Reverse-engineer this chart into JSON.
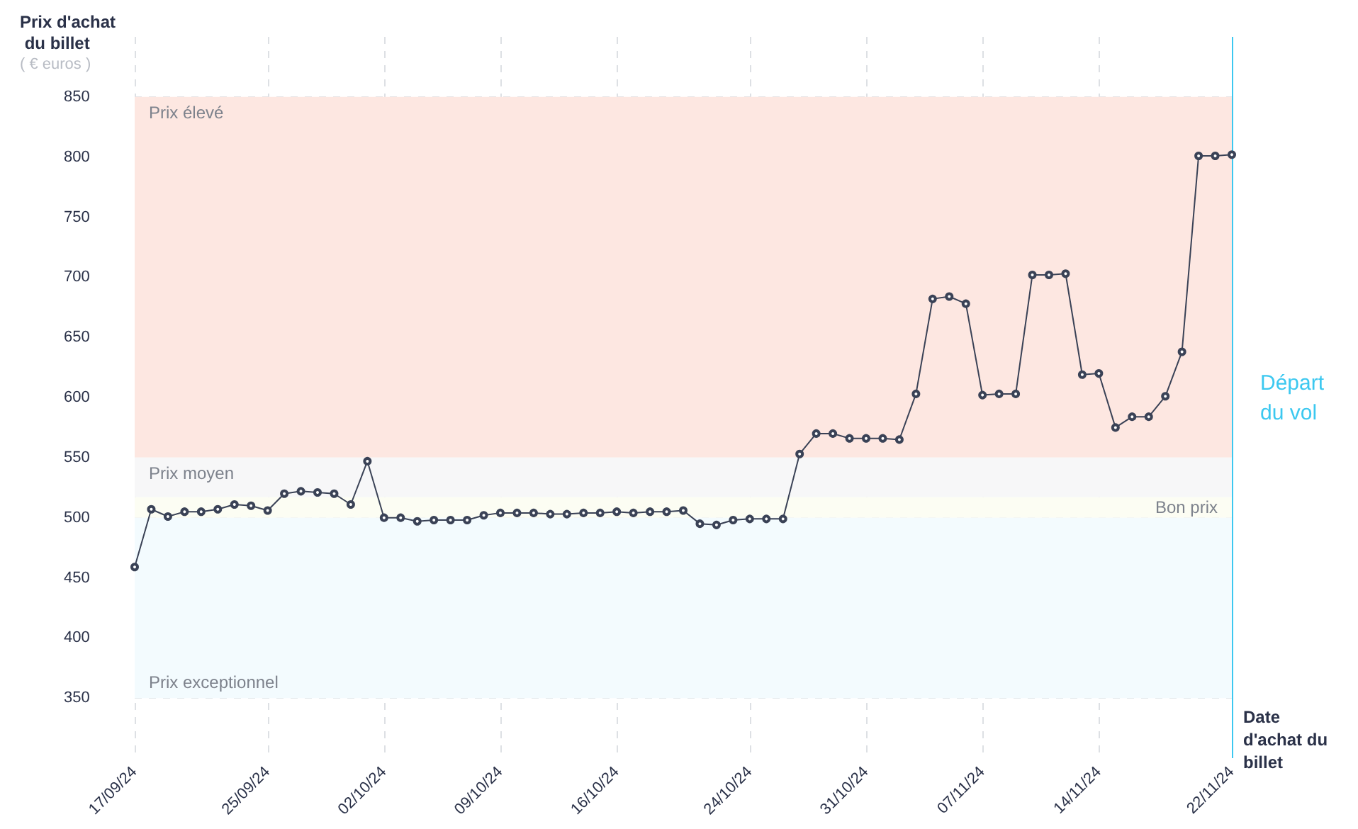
{
  "chart_data": {
    "type": "line",
    "ylabel": "Prix d'achat du billet",
    "xlabel": "Date d'achat du billet",
    "annotations": [
      "( € euros )"
    ],
    "x": [
      "--09-17",
      "--09-18",
      "--09-19",
      "--09-20",
      "--09-21",
      "--09-22",
      "--09-23",
      "--09-24",
      "--09-25",
      "--09-26",
      "--09-27",
      "--09-28",
      "--09-29",
      "--09-30",
      "--10-01",
      "--10-02",
      "--10-03",
      "--10-04",
      "--10-05",
      "--10-06",
      "--10-07",
      "--10-08",
      "--10-09",
      "--10-10",
      "--10-11",
      "--10-12",
      "--10-13",
      "--10-14",
      "--10-15",
      "--10-16",
      "--10-17",
      "--10-18",
      "--10-19",
      "--10-20",
      "--10-21",
      "--10-22",
      "--10-23",
      "--10-24",
      "--10-25",
      "--10-26",
      "--10-27",
      "--10-28",
      "--10-29",
      "--10-30",
      "--10-31",
      "--11-01",
      "--11-02",
      "--11-03",
      "--11-04",
      "--11-05",
      "--11-06",
      "--11-07",
      "--11-08",
      "--11-09",
      "--11-10",
      "--11-11",
      "--11-12",
      "--11-13",
      "--11-14",
      "--11-15",
      "--11-16",
      "--11-17",
      "--11-18",
      "--11-19",
      "--11-20",
      "--11-21",
      "--11-22"
    ],
    "series": [
      {
        "color": "#3a4256",
        "values": [
          459,
          507,
          501,
          505,
          505,
          507,
          511,
          510,
          506,
          520,
          522,
          521,
          520,
          511,
          547,
          500,
          500,
          497,
          498,
          498,
          498,
          502,
          504,
          504,
          504,
          503,
          503,
          504,
          504,
          505,
          504,
          505,
          505,
          506,
          495,
          494,
          498,
          499,
          499,
          499,
          553,
          570,
          570,
          566,
          566,
          566,
          565,
          603,
          682,
          684,
          678,
          602,
          603,
          603,
          702,
          702,
          703,
          619,
          620,
          575,
          584,
          584,
          601,
          638,
          801,
          801,
          802
        ]
      }
    ],
    "xlim": [
      "--09-17",
      "--11-22"
    ],
    "xticks": [
      {
        "value": "--09-17",
        "label": "17/09/24"
      },
      {
        "value": "--09-25",
        "label": "25/09/24"
      },
      {
        "value": "--10-02",
        "label": "02/10/24"
      },
      {
        "value": "--10-09",
        "label": "09/10/24"
      },
      {
        "value": "--10-16",
        "label": "16/10/24"
      },
      {
        "value": "--10-24",
        "label": "24/10/24"
      },
      {
        "value": "--10-31",
        "label": "31/10/24"
      },
      {
        "value": "--11-07",
        "label": "07/11/24"
      },
      {
        "value": "--11-14",
        "label": "14/11/24"
      },
      {
        "value": "--11-22",
        "label": "22/11/24"
      }
    ],
    "ylim": [
      300,
      900
    ],
    "yticks": [
      350,
      400,
      450,
      500,
      550,
      600,
      650,
      700,
      750,
      800,
      850
    ],
    "bands": [
      {
        "axis": "y",
        "from": 550,
        "to": 850,
        "label": "Prix élevé",
        "color": "#fde7e1"
      },
      {
        "axis": "y",
        "from": 517,
        "to": 550,
        "label": "Prix moyen",
        "color": "#f7f7f8"
      },
      {
        "axis": "y",
        "from": 500,
        "to": 517,
        "label": "Bon prix",
        "color": "#fcfdf3"
      },
      {
        "axis": "y",
        "from": 350,
        "to": 500,
        "label": "Prix exceptionnel",
        "color": "#f3fbfe"
      }
    ],
    "ref_lines": [
      {
        "axis": "x",
        "value": "--11-22",
        "label": "Départ du vol",
        "color": "#3cc8f0"
      }
    ],
    "grid": true,
    "marker": "circle",
    "line_style": "solid"
  }
}
